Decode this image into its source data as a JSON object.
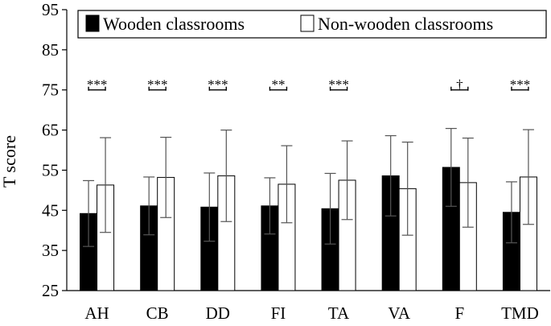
{
  "chart_data": {
    "type": "bar",
    "ylabel": "T score",
    "xlabel": "",
    "ylim": [
      25,
      95
    ],
    "yticks": [
      25,
      35,
      45,
      55,
      65,
      75,
      85,
      95
    ],
    "grid": false,
    "legend_position": "top",
    "categories": [
      "AH",
      "CB",
      "DD",
      "FI",
      "TA",
      "VA",
      "F",
      "TMD"
    ],
    "series": [
      {
        "name": "Wooden classrooms",
        "color": "#000000",
        "values": [
          44.2,
          46.1,
          45.8,
          46.1,
          45.4,
          53.6,
          55.7,
          44.5
        ],
        "error": [
          8.2,
          7.2,
          8.5,
          7.0,
          8.8,
          10.0,
          9.7,
          7.6
        ]
      },
      {
        "name": "Non-wooden classrooms",
        "color": "#ffffff",
        "values": [
          51.3,
          53.2,
          53.6,
          51.5,
          52.5,
          50.4,
          51.9,
          53.3
        ],
        "error": [
          11.8,
          10.0,
          11.4,
          9.6,
          9.8,
          11.6,
          11.1,
          11.8
        ]
      }
    ],
    "annotations": [
      "***",
      "***",
      "***",
      "**",
      "***",
      "",
      "†",
      "***"
    ],
    "annotation_y": 75
  }
}
